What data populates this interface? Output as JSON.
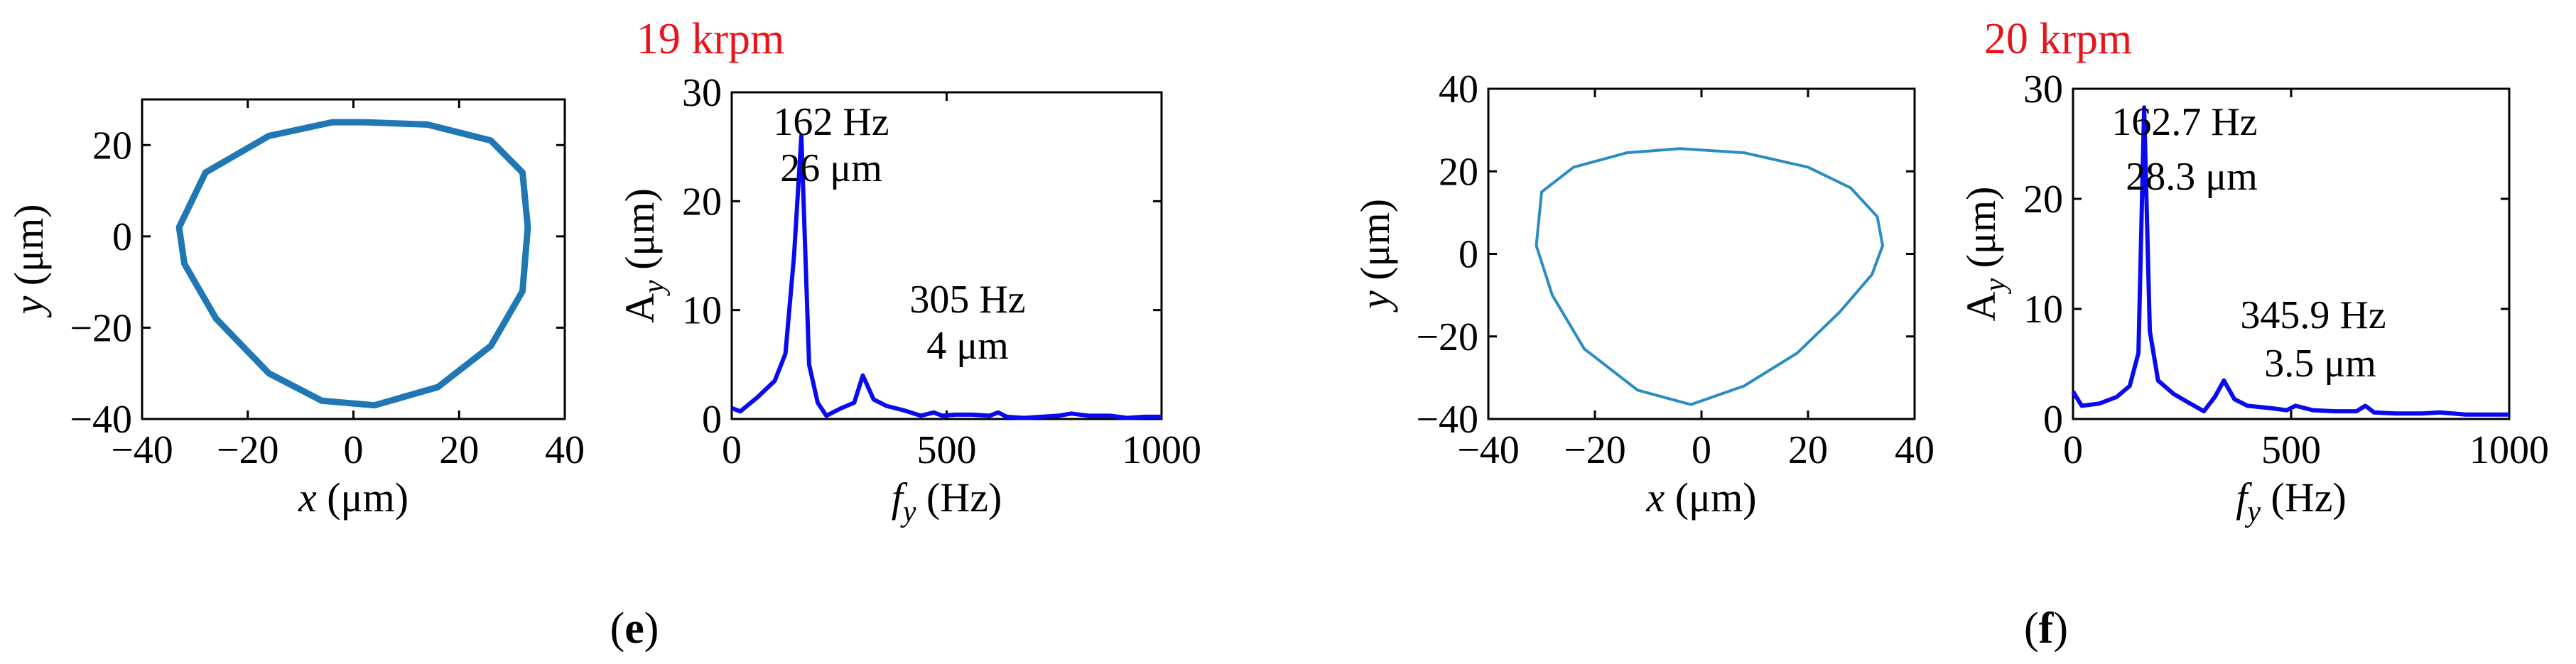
{
  "panels": [
    {
      "id": "e",
      "label_open": "(",
      "label_letter": "e",
      "label_close": ")",
      "title": "19 krpm",
      "orbit": {
        "xlabel_var": "x",
        "xlabel_unit": " (μm)",
        "ylabel_var": "y",
        "ylabel_unit": " (μm)"
      },
      "spectrum": {
        "xlabel_var": "f",
        "xlabel_sub": "y",
        "xlabel_unit": " (Hz)",
        "ylabel_var": "A",
        "ylabel_sub": "y",
        "ylabel_unit": " (μm)",
        "ann1_line1": "162 Hz",
        "ann1_line2": "26 μm",
        "ann2_line1": "305 Hz",
        "ann2_line2": "4 μm"
      }
    },
    {
      "id": "f",
      "label_open": "(",
      "label_letter": "f",
      "label_close": ")",
      "title": "20 krpm",
      "orbit": {
        "xlabel_var": "x",
        "xlabel_unit": " (μm)",
        "ylabel_var": "y",
        "ylabel_unit": " (μm)"
      },
      "spectrum": {
        "xlabel_var": "f",
        "xlabel_sub": "y",
        "xlabel_unit": " (Hz)",
        "ylabel_var": "A",
        "ylabel_sub": "y",
        "ylabel_unit": " (μm)",
        "ann1_line1": "162.7 Hz",
        "ann1_line2": "28.3 μm",
        "ann2_line1": "345.9 Hz",
        "ann2_line2": "3.5 μm"
      }
    }
  ],
  "chart_data": [
    {
      "type": "line",
      "panel": "e",
      "subtype": "orbit",
      "xlim": [
        -40,
        40
      ],
      "ylim": [
        -40,
        30
      ],
      "xticks": [
        -40,
        -20,
        0,
        20,
        40
      ],
      "yticks": [
        -40,
        -20,
        0,
        20
      ],
      "color": "#1f77b4",
      "series": [
        {
          "x": [
            2,
            14,
            26,
            32,
            33,
            32,
            26,
            16,
            4,
            -6,
            -16,
            -26,
            -32,
            -33,
            -28,
            -16,
            -4,
            2
          ],
          "y": [
            25,
            24.5,
            21,
            14,
            2,
            -12,
            -24,
            -33,
            -37,
            -36,
            -30,
            -18,
            -6,
            2,
            14,
            22,
            25,
            25
          ]
        }
      ]
    },
    {
      "type": "line",
      "panel": "e",
      "subtype": "spectrum",
      "xlim": [
        0,
        1000
      ],
      "ylim": [
        0,
        30
      ],
      "xticks": [
        0,
        500,
        1000
      ],
      "yticks": [
        0,
        10,
        20,
        30
      ],
      "color": "#0a0af0",
      "series": [
        {
          "x": [
            0,
            20,
            60,
            100,
            125,
            145,
            162,
            180,
            200,
            220,
            255,
            285,
            305,
            330,
            360,
            400,
            440,
            470,
            490,
            520,
            560,
            600,
            620,
            640,
            680,
            720,
            760,
            790,
            830,
            880,
            920,
            960,
            1000
          ],
          "y": [
            1,
            0.7,
            2,
            3.5,
            6,
            15,
            26,
            5,
            1.5,
            0.3,
            1,
            1.5,
            4,
            1.8,
            1.2,
            0.8,
            0.3,
            0.6,
            0.3,
            0.4,
            0.4,
            0.3,
            0.6,
            0.2,
            0.1,
            0.2,
            0.3,
            0.5,
            0.3,
            0.3,
            0.1,
            0.2,
            0.2
          ]
        }
      ]
    },
    {
      "type": "line",
      "panel": "f",
      "subtype": "orbit",
      "xlim": [
        -40,
        40
      ],
      "ylim": [
        -40,
        40
      ],
      "xticks": [
        -40,
        -20,
        0,
        20,
        40
      ],
      "yticks": [
        -40,
        -20,
        0,
        20,
        40
      ],
      "color": "#2b8cc4",
      "series": [
        {
          "x": [
            -30,
            -24,
            -14,
            -4,
            8,
            20,
            28,
            33,
            34,
            32,
            26,
            18,
            8,
            -2,
            -12,
            -22,
            -28,
            -31,
            -30
          ],
          "y": [
            15,
            21,
            24.5,
            25.5,
            24.5,
            21,
            16,
            9,
            2,
            -5,
            -14,
            -24,
            -32,
            -36.5,
            -33,
            -23,
            -10,
            2,
            15
          ]
        }
      ]
    },
    {
      "type": "line",
      "panel": "f",
      "subtype": "spectrum",
      "xlim": [
        0,
        1000
      ],
      "ylim": [
        0,
        30
      ],
      "xticks": [
        0,
        500,
        1000
      ],
      "yticks": [
        0,
        10,
        20,
        30
      ],
      "color": "#0a0af0",
      "series": [
        {
          "x": [
            0,
            20,
            60,
            100,
            130,
            150,
            163,
            176,
            195,
            230,
            260,
            300,
            325,
            346,
            370,
            400,
            450,
            490,
            510,
            550,
            600,
            650,
            670,
            690,
            740,
            800,
            840,
            900,
            950,
            1000
          ],
          "y": [
            2.5,
            1.2,
            1.4,
            2,
            3,
            6,
            28.3,
            8,
            3.5,
            2.3,
            1.6,
            0.7,
            2,
            3.5,
            1.8,
            1.2,
            1,
            0.8,
            1.2,
            0.8,
            0.7,
            0.7,
            1.2,
            0.6,
            0.5,
            0.5,
            0.6,
            0.4,
            0.4,
            0.4
          ]
        }
      ]
    }
  ]
}
